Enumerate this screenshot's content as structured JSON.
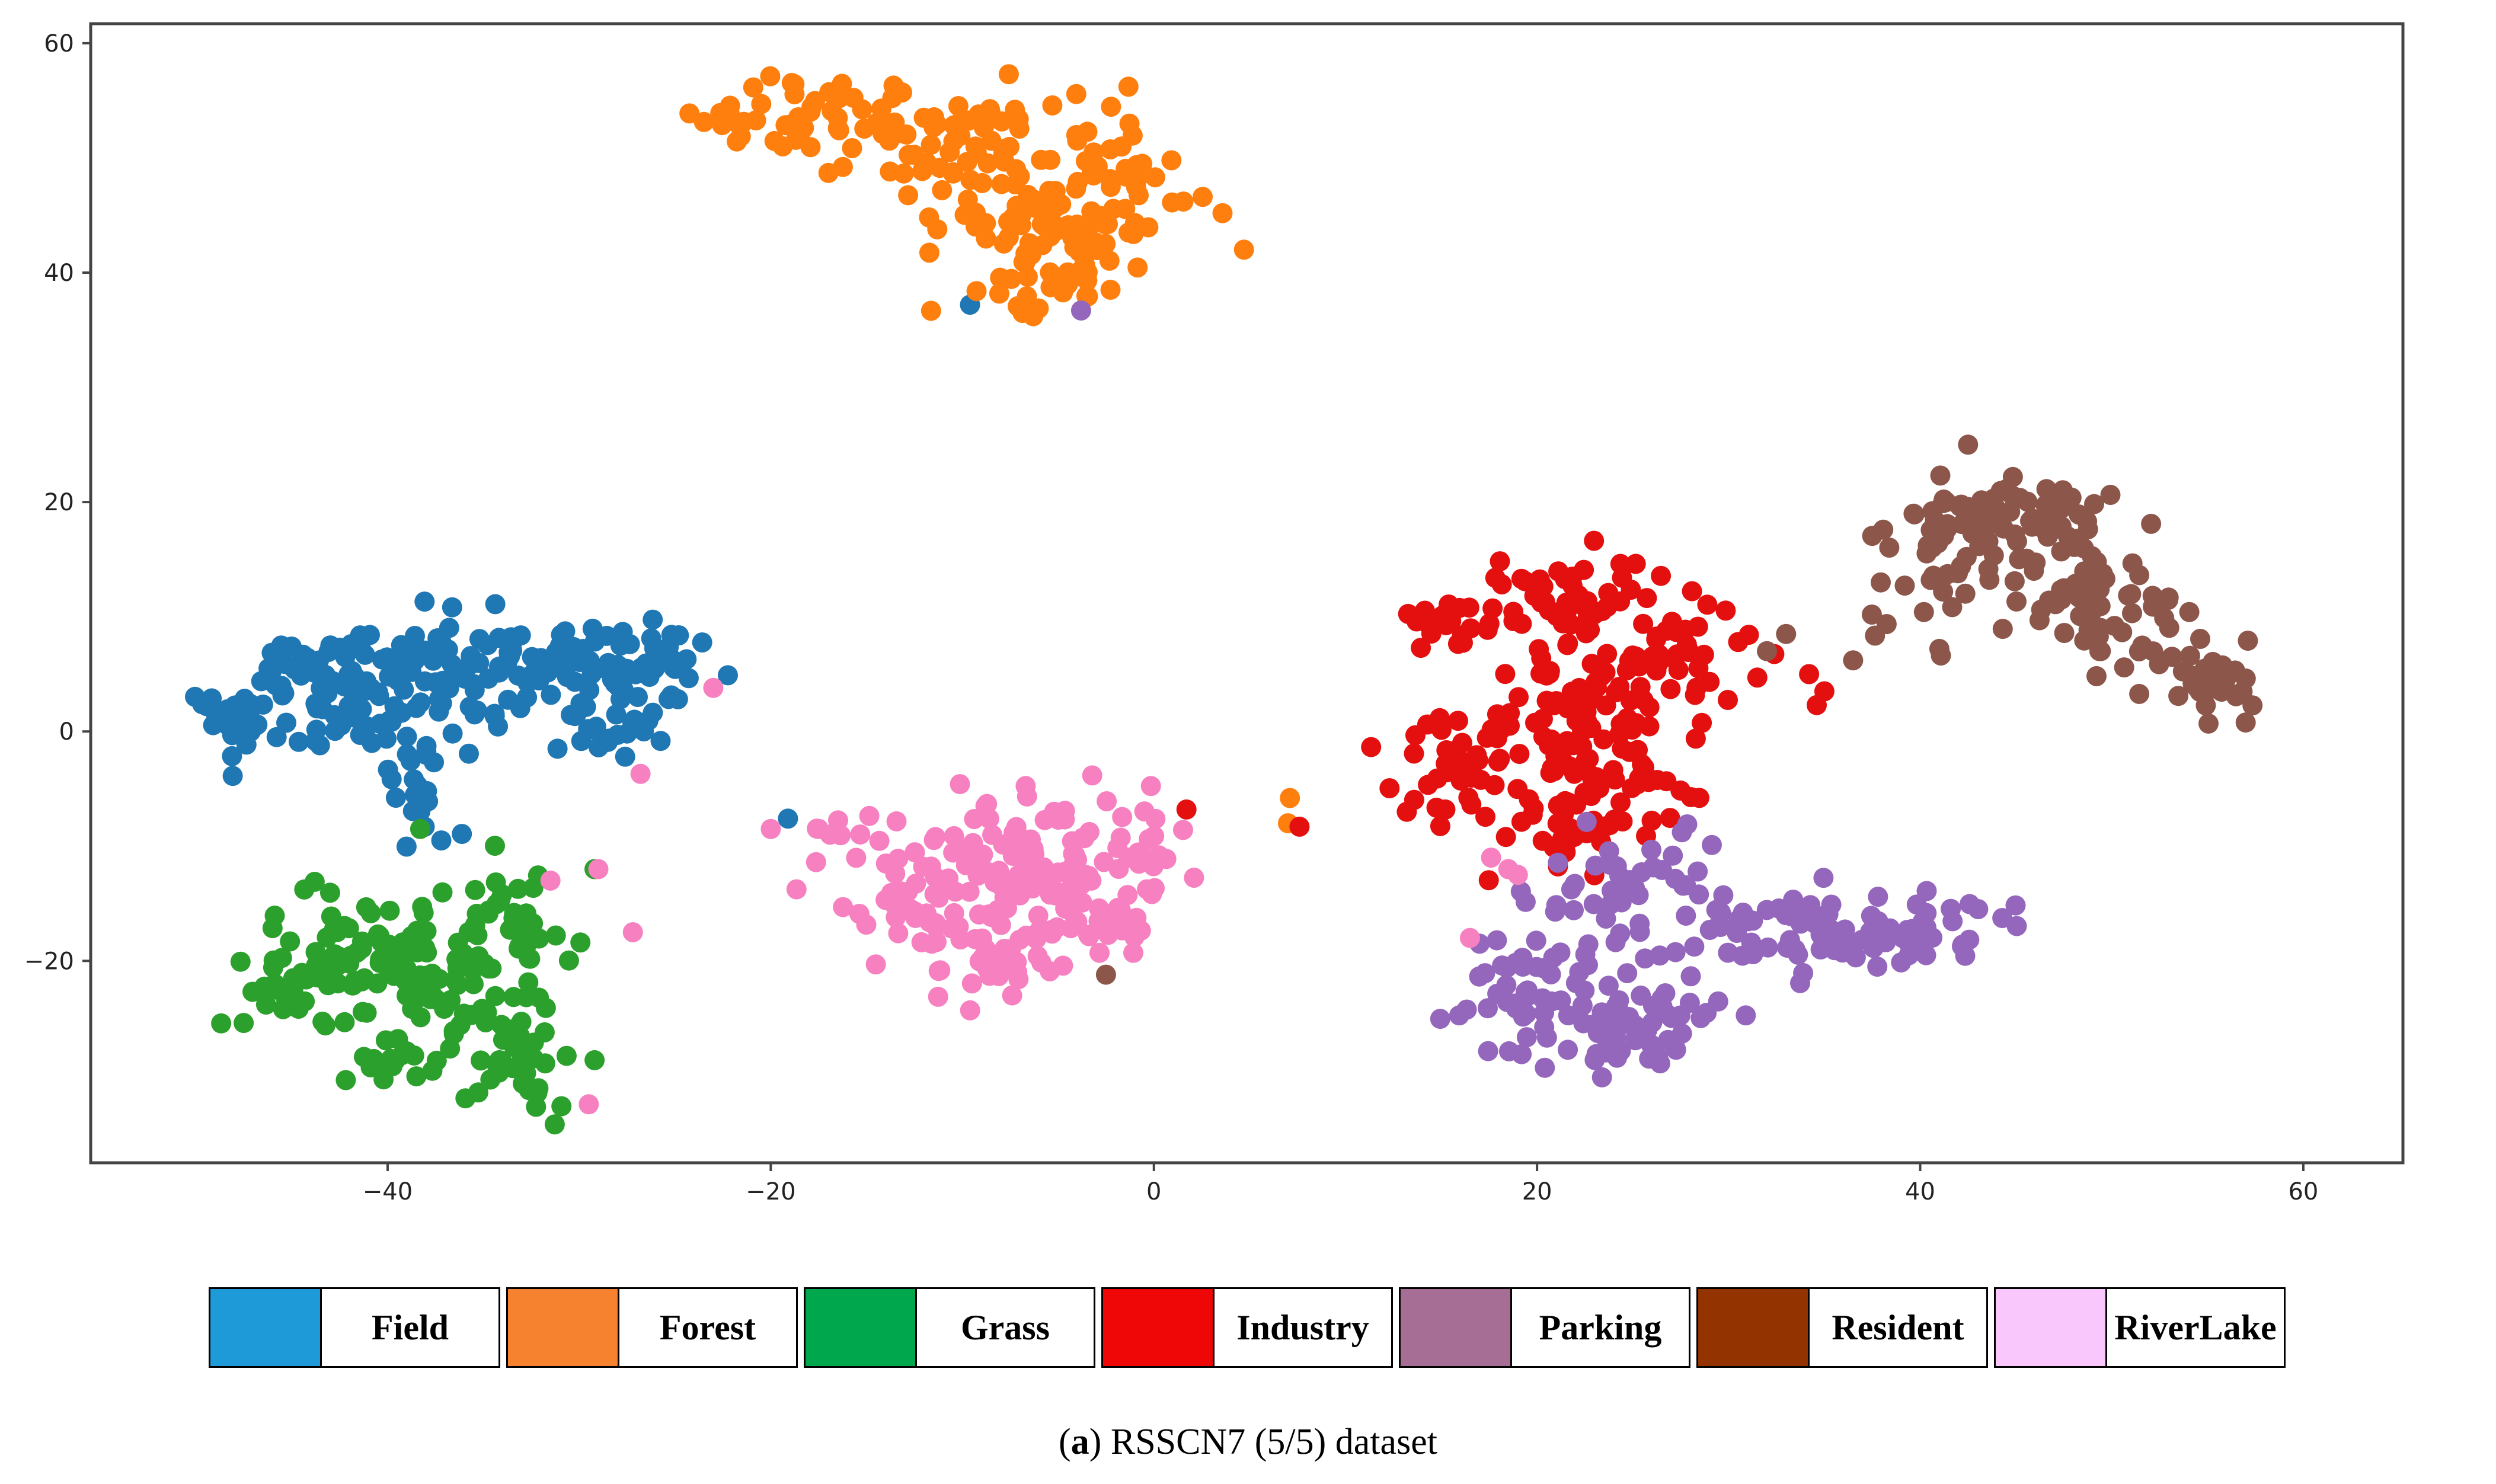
{
  "chart_data": {
    "type": "scatter",
    "title": "",
    "xlabel": "",
    "ylabel": "",
    "xlim": [
      -55.5,
      65.2
    ],
    "ylim": [
      -37.6,
      61.7
    ],
    "xticks": [
      -40,
      -20,
      0,
      20,
      40,
      60
    ],
    "yticks": [
      60,
      40,
      20,
      0,
      -20
    ],
    "grid": false,
    "legend_position": "below",
    "series": [
      {
        "name": "Field",
        "legend_color": "#1f9ad8",
        "point_color": "#1f77b4",
        "clusters": [
          {
            "cx": -48.5,
            "cy": 0.5,
            "sx": 0.8,
            "sy": 1.5,
            "n": 28
          },
          {
            "cx": -43.5,
            "cy": 5.5,
            "sx": 2.2,
            "sy": 1.6,
            "n": 55
          },
          {
            "cx": -42.5,
            "cy": 1.0,
            "sx": 1.5,
            "sy": 1.5,
            "n": 25
          },
          {
            "cx": -37.5,
            "cy": 4.5,
            "sx": 2.5,
            "sy": 2.2,
            "n": 60
          },
          {
            "cx": -38.3,
            "cy": -4.0,
            "sx": 0.9,
            "sy": 2.2,
            "n": 22
          },
          {
            "cx": -31.0,
            "cy": 6.0,
            "sx": 2.5,
            "sy": 2.0,
            "n": 45
          },
          {
            "cx": -26.5,
            "cy": 6.0,
            "sx": 1.7,
            "sy": 2.0,
            "n": 45
          },
          {
            "cx": -29.5,
            "cy": 0.5,
            "sx": 1.8,
            "sy": 1.2,
            "n": 20
          }
        ],
        "points": [
          [
            -37.2,
            -9.5
          ],
          [
            -27.6,
            -2.2
          ],
          [
            -19.1,
            -7.6
          ],
          [
            -9.6,
            37.2
          ]
        ]
      },
      {
        "name": "Forest",
        "legend_color": "#f6812e",
        "point_color": "#ff7f0e",
        "clusters": [
          {
            "cx": -19.5,
            "cy": 53.0,
            "sx": 1.8,
            "sy": 1.5,
            "n": 35
          },
          {
            "cx": -14.0,
            "cy": 52.5,
            "sx": 2.0,
            "sy": 2.0,
            "n": 30
          },
          {
            "cx": -9.0,
            "cy": 51.0,
            "sx": 2.0,
            "sy": 2.5,
            "n": 30
          },
          {
            "cx": -7.0,
            "cy": 45.0,
            "sx": 2.0,
            "sy": 3.0,
            "n": 45
          },
          {
            "cx": -4.0,
            "cy": 42.0,
            "sx": 1.5,
            "sy": 2.5,
            "n": 40
          },
          {
            "cx": -2.0,
            "cy": 49.0,
            "sx": 2.5,
            "sy": 3.0,
            "n": 40
          },
          {
            "cx": -7.5,
            "cy": 38.5,
            "sx": 1.8,
            "sy": 1.0,
            "n": 12
          }
        ],
        "points": [
          [
            4.7,
            42.0
          ],
          [
            7.1,
            -5.8
          ],
          [
            7.0,
            -8.0
          ],
          [
            -6.3,
            36.2
          ]
        ]
      },
      {
        "name": "Grass",
        "legend_color": "#00a74c",
        "point_color": "#2ca02c",
        "clusters": [
          {
            "cx": -46.0,
            "cy": -23.0,
            "sx": 1.5,
            "sy": 1.2,
            "n": 20
          },
          {
            "cx": -42.5,
            "cy": -20.0,
            "sx": 1.8,
            "sy": 3.5,
            "n": 45
          },
          {
            "cx": -38.0,
            "cy": -20.5,
            "sx": 2.2,
            "sy": 3.5,
            "n": 80
          },
          {
            "cx": -33.0,
            "cy": -17.0,
            "sx": 1.5,
            "sy": 3.0,
            "n": 40
          },
          {
            "cx": -33.0,
            "cy": -28.0,
            "sx": 1.5,
            "sy": 2.5,
            "n": 40
          },
          {
            "cx": -40.0,
            "cy": -28.5,
            "sx": 1.2,
            "sy": 1.5,
            "n": 15
          }
        ],
        "points": [
          [
            -38.3,
            -8.5
          ],
          [
            -29.2,
            -12.0
          ]
        ]
      },
      {
        "name": "Industry",
        "legend_color": "#ef0707",
        "point_color": "#e4100f",
        "clusters": [
          {
            "cx": 16.0,
            "cy": 9.5,
            "sx": 1.8,
            "sy": 1.0,
            "n": 20
          },
          {
            "cx": 22.0,
            "cy": 11.5,
            "sx": 2.5,
            "sy": 2.0,
            "n": 50
          },
          {
            "cx": 27.0,
            "cy": 6.0,
            "sx": 1.8,
            "sy": 2.5,
            "n": 40
          },
          {
            "cx": 22.0,
            "cy": 3.5,
            "sx": 1.8,
            "sy": 2.5,
            "n": 40
          },
          {
            "cx": 15.5,
            "cy": -2.5,
            "sx": 1.5,
            "sy": 2.5,
            "n": 30
          },
          {
            "cx": 20.0,
            "cy": -3.5,
            "sx": 2.5,
            "sy": 2.5,
            "n": 40
          },
          {
            "cx": 25.0,
            "cy": -4.5,
            "sx": 2.0,
            "sy": 3.0,
            "n": 40
          },
          {
            "cx": 21.0,
            "cy": -9.5,
            "sx": 1.8,
            "sy": 1.5,
            "n": 20
          }
        ],
        "points": [
          [
            30.5,
            7.8
          ],
          [
            31.5,
            4.7
          ],
          [
            35.0,
            3.5
          ],
          [
            34.2,
            5.0
          ],
          [
            34.6,
            2.3
          ],
          [
            1.7,
            -6.8
          ],
          [
            7.6,
            -8.3
          ],
          [
            13.2,
            -7.0
          ]
        ]
      },
      {
        "name": "Parking",
        "legend_color": "#a66d95",
        "point_color": "#9467bd",
        "clusters": [
          {
            "cx": 23.0,
            "cy": -13.5,
            "sx": 1.8,
            "sy": 2.5,
            "n": 30
          },
          {
            "cx": 27.5,
            "cy": -12.0,
            "sx": 1.2,
            "sy": 1.5,
            "n": 15
          },
          {
            "cx": 20.5,
            "cy": -23.5,
            "sx": 2.0,
            "sy": 2.8,
            "n": 55
          },
          {
            "cx": 25.5,
            "cy": -25.5,
            "sx": 2.0,
            "sy": 2.5,
            "n": 45
          },
          {
            "cx": 31.5,
            "cy": -17.0,
            "sx": 1.8,
            "sy": 2.0,
            "n": 30
          },
          {
            "cx": 36.5,
            "cy": -17.5,
            "sx": 2.0,
            "sy": 1.8,
            "n": 40
          },
          {
            "cx": 40.5,
            "cy": -17.0,
            "sx": 1.5,
            "sy": 1.5,
            "n": 25
          }
        ],
        "points": [
          [
            17.0,
            -18.5
          ],
          [
            -3.8,
            36.7
          ]
        ]
      },
      {
        "name": "Resident",
        "legend_color": "#933300",
        "point_color": "#8c564b",
        "clusters": [
          {
            "cx": 41.5,
            "cy": 18.0,
            "sx": 1.8,
            "sy": 2.0,
            "n": 40
          },
          {
            "cx": 46.0,
            "cy": 19.0,
            "sx": 1.8,
            "sy": 2.0,
            "n": 40
          },
          {
            "cx": 47.5,
            "cy": 12.5,
            "sx": 1.8,
            "sy": 3.0,
            "n": 40
          },
          {
            "cx": 51.0,
            "cy": 9.5,
            "sx": 1.5,
            "sy": 2.5,
            "n": 25
          },
          {
            "cx": 55.5,
            "cy": 4.5,
            "sx": 1.5,
            "sy": 2.0,
            "n": 30
          },
          {
            "cx": 40.0,
            "cy": 11.0,
            "sx": 1.5,
            "sy": 1.8,
            "n": 12
          }
        ],
        "points": [
          [
            42.5,
            25.0
          ],
          [
            32.0,
            7.0
          ],
          [
            33.0,
            8.5
          ],
          [
            36.5,
            6.2
          ],
          [
            41.0,
            7.2
          ],
          [
            -2.5,
            -21.2
          ]
        ]
      },
      {
        "name": "RiverLake",
        "legend_color": "#fac7fc",
        "point_color": "#f781c0",
        "clusters": [
          {
            "cx": -12.0,
            "cy": -14.0,
            "sx": 2.5,
            "sy": 3.0,
            "n": 50
          },
          {
            "cx": -7.0,
            "cy": -11.0,
            "sx": 2.5,
            "sy": 3.5,
            "n": 70
          },
          {
            "cx": -4.0,
            "cy": -15.0,
            "sx": 2.5,
            "sy": 3.0,
            "n": 60
          },
          {
            "cx": -9.0,
            "cy": -20.0,
            "sx": 2.0,
            "sy": 1.5,
            "n": 25
          },
          {
            "cx": -1.5,
            "cy": -9.0,
            "sx": 1.5,
            "sy": 2.5,
            "n": 20
          },
          {
            "cx": -16.0,
            "cy": -9.0,
            "sx": 1.2,
            "sy": 1.0,
            "n": 8
          }
        ],
        "points": [
          [
            -23.0,
            3.8
          ],
          [
            -26.8,
            -3.7
          ],
          [
            -29.0,
            -12.0
          ],
          [
            -31.5,
            -13.0
          ],
          [
            -27.2,
            -17.5
          ],
          [
            -29.5,
            -32.5
          ],
          [
            -20.0,
            -8.5
          ],
          [
            17.6,
            -11.0
          ],
          [
            18.5,
            -12.0
          ],
          [
            19.0,
            -12.5
          ],
          [
            16.5,
            -18.0
          ]
        ]
      }
    ]
  },
  "legend": [
    {
      "label": "Field",
      "color": "#1f9ad8"
    },
    {
      "label": "Forest",
      "color": "#f6812e"
    },
    {
      "label": "Grass",
      "color": "#00a74c"
    },
    {
      "label": "Industry",
      "color": "#ef0707"
    },
    {
      "label": "Parking",
      "color": "#a66d95"
    },
    {
      "label": "Resident",
      "color": "#933300"
    },
    {
      "label": "RiverLake",
      "color": "#fac7fc"
    }
  ],
  "caption": {
    "label": "a",
    "open": "(",
    "close": ")",
    "text": " RSSCN7 (5/5) dataset"
  }
}
